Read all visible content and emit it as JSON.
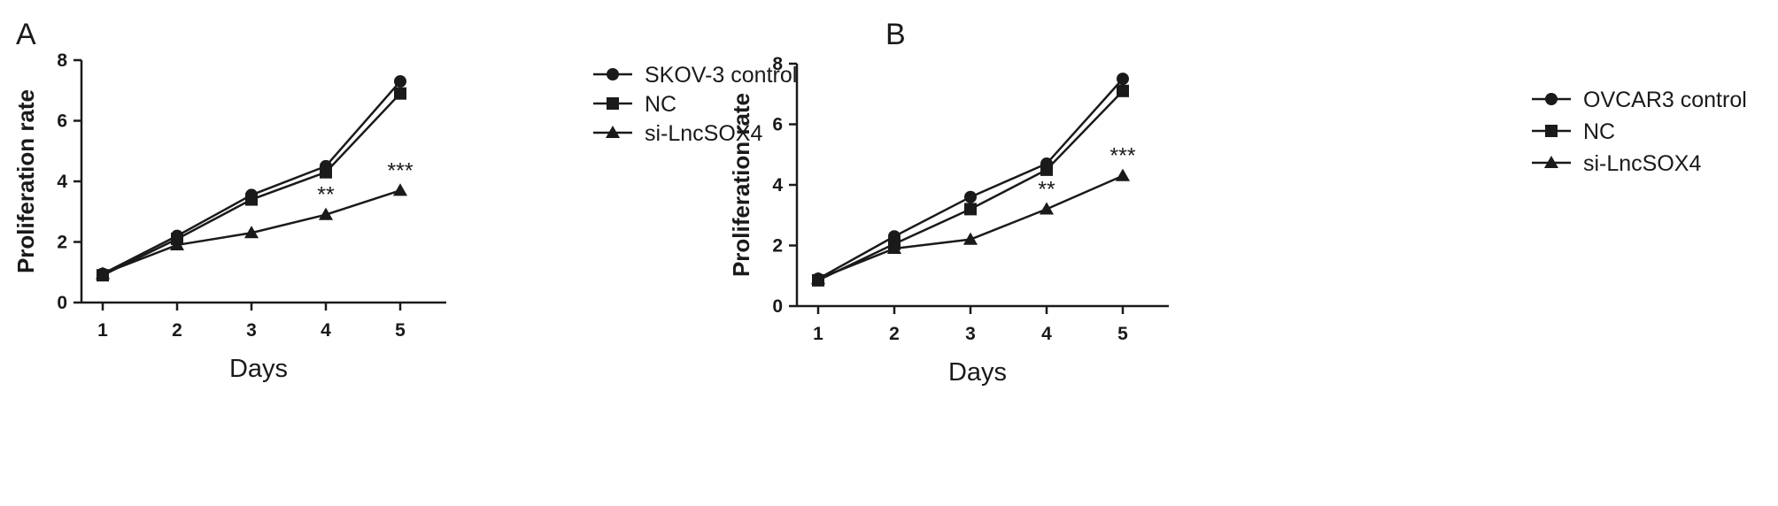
{
  "chart_data": [
    {
      "type": "line",
      "panel": "A",
      "xlabel": "Days",
      "ylabel": "Proliferation rate",
      "x": [
        1,
        2,
        3,
        4,
        5
      ],
      "xticks": [
        "1",
        "2",
        "3",
        "4",
        "5"
      ],
      "yticks": [
        "0",
        "2",
        "4",
        "6",
        "8"
      ],
      "ylim": [
        0,
        8
      ],
      "grid": false,
      "legend_position": "right",
      "series": [
        {
          "name": "SKOV-3 control",
          "marker": "circle",
          "values": [
            0.95,
            2.2,
            3.55,
            4.5,
            7.3
          ]
        },
        {
          "name": "NC",
          "marker": "square",
          "values": [
            0.9,
            2.1,
            3.4,
            4.3,
            6.9
          ]
        },
        {
          "name": "si-LncSOX4",
          "marker": "triangle",
          "values": [
            0.95,
            1.9,
            2.3,
            2.9,
            3.7
          ]
        }
      ],
      "annotations": [
        {
          "x": 4,
          "y": 2.9,
          "text": "**"
        },
        {
          "x": 5,
          "y": 3.7,
          "text": "***"
        }
      ]
    },
    {
      "type": "line",
      "panel": "B",
      "xlabel": "Days",
      "ylabel": "Proliferation rate",
      "x": [
        1,
        2,
        3,
        4,
        5
      ],
      "xticks": [
        "1",
        "2",
        "3",
        "4",
        "5"
      ],
      "yticks": [
        "0",
        "2",
        "4",
        "6",
        "8"
      ],
      "ylim": [
        0,
        8
      ],
      "grid": false,
      "legend_position": "right",
      "series": [
        {
          "name": "OVCAR3 control",
          "marker": "circle",
          "values": [
            0.9,
            2.3,
            3.6,
            4.7,
            7.5
          ]
        },
        {
          "name": "NC",
          "marker": "square",
          "values": [
            0.85,
            2.05,
            3.2,
            4.5,
            7.1
          ]
        },
        {
          "name": "si-LncSOX4",
          "marker": "triangle",
          "values": [
            0.9,
            1.9,
            2.2,
            3.2,
            4.3
          ]
        }
      ],
      "annotations": [
        {
          "x": 4,
          "y": 3.2,
          "text": "**"
        },
        {
          "x": 5,
          "y": 4.3,
          "text": "***"
        }
      ]
    }
  ]
}
